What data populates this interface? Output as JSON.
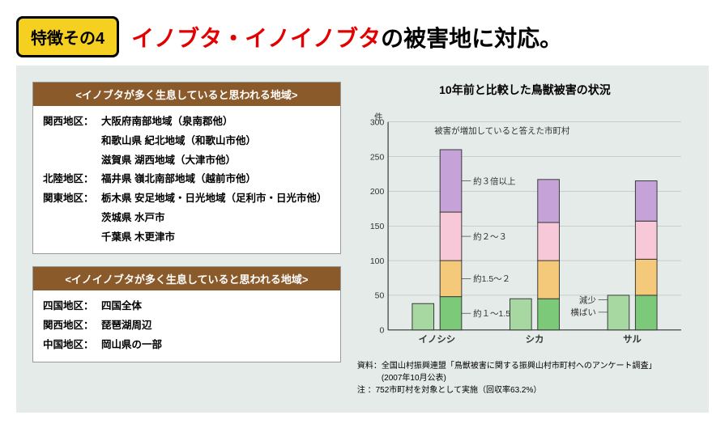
{
  "badge": "特徴その4",
  "title_red": "イノブタ・イノイノブタ",
  "title_black": "の被害地に対応。",
  "box1": {
    "header": "<イノブタが多く生息していると思われる地域>",
    "rows": [
      {
        "label": "関西地区：",
        "text": "大阪府南部地域（泉南郡他）"
      },
      {
        "label": "",
        "text": "和歌山県 紀北地域（和歌山市他）"
      },
      {
        "label": "",
        "text": "滋賀県 湖西地域（大津市他）"
      },
      {
        "label": "北陸地区：",
        "text": "福井県 嶺北南部地域（越前市他）"
      },
      {
        "label": "関東地区：",
        "text": "栃木県 安足地域・日光地域（足利市・日光市他）"
      },
      {
        "label": "",
        "text": "茨城県 水戸市"
      },
      {
        "label": "",
        "text": "千葉県 木更津市"
      }
    ]
  },
  "box2": {
    "header": "<イノイノブタが多く生息していると思われる地域>",
    "rows": [
      {
        "label": "四国地区：",
        "text": "四国全体"
      },
      {
        "label": "関西地区：",
        "text": "琵琶湖周辺"
      },
      {
        "label": "中国地区：",
        "text": "岡山県の一部"
      }
    ]
  },
  "chart": {
    "title": "10年前と比較した鳥獣被害の状況",
    "y_unit": "件",
    "y_max": 300,
    "y_tick": 50,
    "categories": [
      "イノシシ",
      "シカ",
      "サル"
    ],
    "left_bars": [
      38,
      45,
      50
    ],
    "stacks": [
      {
        "segments": [
          48,
          52,
          70,
          90
        ],
        "total": 260
      },
      {
        "segments": [
          45,
          55,
          55,
          62
        ],
        "total": 217
      },
      {
        "segments": [
          50,
          52,
          55,
          58
        ],
        "total": 215
      }
    ],
    "colors": {
      "left": "#a7d8a1",
      "seg": [
        "#7dc97a",
        "#f5c97a",
        "#f7c8d8",
        "#c5a3d8"
      ],
      "border": "#333",
      "grid": "#aaa",
      "text": "#333"
    },
    "legend_increase": "被害が増加していると答えた市町村",
    "annot": [
      "約３倍以上",
      "約２～３",
      "約1.5～２",
      "約１～1.5"
    ],
    "side_labels": [
      "減少",
      "横ばい"
    ],
    "footnote1": "資料：全国山村振興連盟「鳥獣被害に関する振興山村市町村へのアンケート調査」",
    "footnote2": "　　　(2007年10月公表)",
    "footnote3": "注 ：752市町村を対象として実施（回収率63.2%）"
  }
}
